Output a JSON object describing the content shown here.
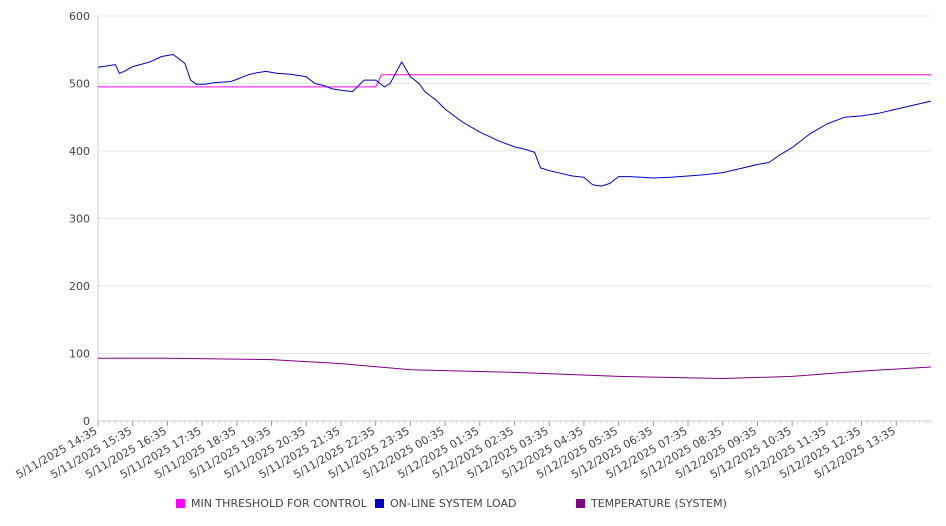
{
  "colors": {
    "threshold": "#ff00ff",
    "load": "#0000cc",
    "temperature": "#800080",
    "grid": "#e8e8e8",
    "axis": "#cccccc"
  },
  "chart_data": {
    "type": "line",
    "title": "",
    "xlabel": "",
    "ylabel": "",
    "ylim": [
      0,
      600
    ],
    "yticks": [
      0,
      100,
      200,
      300,
      400,
      500,
      600
    ],
    "xlim": [
      "5/11/2025 14:35",
      "5/12/2025 14:35"
    ],
    "xtick_labels": [
      "5/11/2025 14:35",
      "5/11/2025 15:35",
      "5/11/2025 16:35",
      "5/11/2025 17:35",
      "5/11/2025 18:35",
      "5/11/2025 19:35",
      "5/11/2025 20:35",
      "5/11/2025 21:35",
      "5/11/2025 22:35",
      "5/11/2025 23:35",
      "5/12/2025 00:35",
      "5/12/2025 01:35",
      "5/12/2025 02:35",
      "5/12/2025 03:35",
      "5/12/2025 04:35",
      "5/12/2025 05:35",
      "5/12/2025 06:35",
      "5/12/2025 07:35",
      "5/12/2025 08:35",
      "5/12/2025 09:35",
      "5/12/2025 10:35",
      "5/12/2025 11:35",
      "5/12/2025 12:35",
      "5/12/2025 13:35"
    ],
    "grid": true,
    "legend_position": "bottom",
    "series": [
      {
        "name": "MIN THRESHOLD FOR CONTROL",
        "color": "#ff00ff",
        "points": [
          [
            "5/11/2025 14:35",
            495
          ],
          [
            "5/11/2025 22:35",
            495
          ],
          [
            "5/11/2025 22:45",
            513
          ],
          [
            "5/12/2025 14:35",
            513
          ]
        ]
      },
      {
        "name": "ON-LINE SYSTEM LOAD",
        "color": "#0000cc",
        "points": [
          [
            "5/11/2025 14:35",
            524
          ],
          [
            "5/11/2025 15:05",
            528
          ],
          [
            "5/11/2025 15:12",
            515
          ],
          [
            "5/11/2025 15:20",
            518
          ],
          [
            "5/11/2025 15:35",
            525
          ],
          [
            "5/11/2025 16:05",
            532
          ],
          [
            "5/11/2025 16:25",
            540
          ],
          [
            "5/11/2025 16:45",
            543
          ],
          [
            "5/11/2025 17:05",
            530
          ],
          [
            "5/11/2025 17:15",
            505
          ],
          [
            "5/11/2025 17:25",
            499
          ],
          [
            "5/11/2025 17:40",
            499
          ],
          [
            "5/11/2025 17:55",
            501
          ],
          [
            "5/11/2025 18:25",
            503
          ],
          [
            "5/11/2025 18:35",
            506
          ],
          [
            "5/11/2025 18:55",
            513
          ],
          [
            "5/11/2025 19:10",
            516
          ],
          [
            "5/11/2025 19:25",
            518
          ],
          [
            "5/11/2025 19:45",
            515
          ],
          [
            "5/11/2025 20:05",
            514
          ],
          [
            "5/11/2025 20:20",
            512
          ],
          [
            "5/11/2025 20:35",
            510
          ],
          [
            "5/11/2025 20:50",
            500
          ],
          [
            "5/11/2025 21:05",
            497
          ],
          [
            "5/11/2025 21:20",
            492
          ],
          [
            "5/11/2025 21:35",
            490
          ],
          [
            "5/11/2025 21:55",
            488
          ],
          [
            "5/11/2025 22:15",
            505
          ],
          [
            "5/11/2025 22:35",
            505
          ],
          [
            "5/11/2025 22:50",
            495
          ],
          [
            "5/11/2025 23:00",
            500
          ],
          [
            "5/11/2025 23:20",
            532
          ],
          [
            "5/11/2025 23:35",
            510
          ],
          [
            "5/11/2025 23:50",
            500
          ],
          [
            "5/12/2025 00:00",
            488
          ],
          [
            "5/12/2025 00:20",
            475
          ],
          [
            "5/12/2025 00:35",
            462
          ],
          [
            "5/12/2025 01:05",
            443
          ],
          [
            "5/12/2025 01:35",
            428
          ],
          [
            "5/12/2025 02:05",
            416
          ],
          [
            "5/12/2025 02:35",
            406
          ],
          [
            "5/12/2025 02:55",
            402
          ],
          [
            "5/12/2025 03:10",
            398
          ],
          [
            "5/12/2025 03:20",
            375
          ],
          [
            "5/12/2025 03:35",
            371
          ],
          [
            "5/12/2025 03:55",
            367
          ],
          [
            "5/12/2025 04:15",
            363
          ],
          [
            "5/12/2025 04:35",
            361
          ],
          [
            "5/12/2025 04:50",
            350
          ],
          [
            "5/12/2025 05:05",
            348
          ],
          [
            "5/12/2025 05:20",
            352
          ],
          [
            "5/12/2025 05:35",
            362
          ],
          [
            "5/12/2025 05:55",
            362
          ],
          [
            "5/12/2025 06:35",
            360
          ],
          [
            "5/12/2025 07:05",
            361
          ],
          [
            "5/12/2025 07:35",
            363
          ],
          [
            "5/12/2025 08:05",
            365
          ],
          [
            "5/12/2025 08:35",
            368
          ],
          [
            "5/12/2025 09:05",
            374
          ],
          [
            "5/12/2025 09:35",
            380
          ],
          [
            "5/12/2025 09:55",
            383
          ],
          [
            "5/12/2025 10:15",
            395
          ],
          [
            "5/12/2025 10:35",
            405
          ],
          [
            "5/12/2025 11:05",
            425
          ],
          [
            "5/12/2025 11:35",
            440
          ],
          [
            "5/12/2025 12:05",
            450
          ],
          [
            "5/12/2025 12:35",
            452
          ],
          [
            "5/12/2025 13:05",
            456
          ],
          [
            "5/12/2025 13:35",
            462
          ],
          [
            "5/12/2025 14:05",
            468
          ],
          [
            "5/12/2025 14:35",
            474
          ]
        ]
      },
      {
        "name": "TEMPERATURE (SYSTEM)",
        "color": "#800080",
        "points": [
          [
            "5/11/2025 14:35",
            93
          ],
          [
            "5/11/2025 16:35",
            93
          ],
          [
            "5/11/2025 19:35",
            91
          ],
          [
            "5/11/2025 21:35",
            85
          ],
          [
            "5/11/2025 23:35",
            76
          ],
          [
            "5/12/2025 02:35",
            72
          ],
          [
            "5/12/2025 05:35",
            66
          ],
          [
            "5/12/2025 08:35",
            63
          ],
          [
            "5/12/2025 10:35",
            66
          ],
          [
            "5/12/2025 12:35",
            74
          ],
          [
            "5/12/2025 14:35",
            80
          ]
        ]
      }
    ]
  }
}
